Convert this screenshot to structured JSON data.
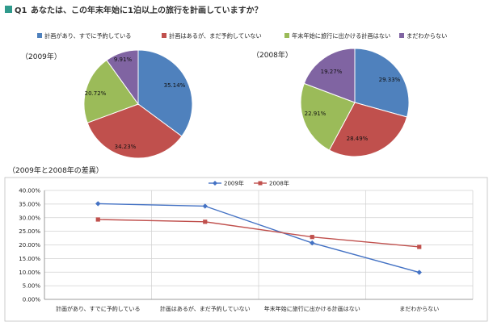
{
  "question": {
    "number": "Q1",
    "text": "あなたは、この年末年始に1泊以上の旅行を計画していますか？",
    "badge_color": "#2f9a8c"
  },
  "pie_legend": [
    {
      "label": "計画があり、すでに予約している",
      "color": "#4f81bd"
    },
    {
      "label": "計画はあるが、まだ予約していない",
      "color": "#c0504d"
    },
    {
      "label": "年末年始に旅行に出かける計画はない",
      "color": "#9bbb59"
    },
    {
      "label": "まだわからない",
      "color": "#8064a2"
    }
  ],
  "comparison_title": "（2009年と2008年の差異）",
  "chart_data": [
    {
      "type": "pie",
      "title": "（2009年）",
      "categories": [
        "計画があり、すでに予約している",
        "計画はあるが、まだ予約していない",
        "年末年始に旅行に出かける計画はない",
        "まだわからない"
      ],
      "values": [
        35.14,
        34.23,
        20.72,
        9.91
      ],
      "value_labels": [
        "35.14%",
        "34.23%",
        "20.72%",
        "9.91%"
      ],
      "colors": [
        "#4f81bd",
        "#c0504d",
        "#9bbb59",
        "#8064a2"
      ]
    },
    {
      "type": "pie",
      "title": "（2008年）",
      "categories": [
        "計画があり、すでに予約している",
        "計画はあるが、まだ予約していない",
        "年末年始に旅行に出かける計画はない",
        "まだわからない"
      ],
      "values": [
        29.33,
        28.49,
        22.91,
        19.27
      ],
      "value_labels": [
        "29.33%",
        "28.49%",
        "22.91%",
        "19.27%"
      ],
      "colors": [
        "#4f81bd",
        "#c0504d",
        "#9bbb59",
        "#8064a2"
      ]
    },
    {
      "type": "line",
      "title": "",
      "categories": [
        "計画があり、すでに予約している",
        "計画はあるが、まだ予約していない",
        "年末年始に旅行に出かける計画はない",
        "まだわからない"
      ],
      "series": [
        {
          "name": "2009年",
          "values": [
            35.14,
            34.23,
            20.72,
            9.91
          ],
          "color": "#4472c4",
          "marker": "diamond"
        },
        {
          "name": "2008年",
          "values": [
            29.33,
            28.49,
            22.91,
            19.27
          ],
          "color": "#c0504d",
          "marker": "square"
        }
      ],
      "ylim": [
        0,
        40
      ],
      "y_ticks": [
        0,
        5,
        10,
        15,
        20,
        25,
        30,
        35,
        40
      ],
      "y_tick_labels": [
        "0.00%",
        "5.00%",
        "10.00%",
        "15.00%",
        "20.00%",
        "25.00%",
        "30.00%",
        "35.00%",
        "40.00%"
      ],
      "legend_position": "top-center",
      "grid": true
    }
  ]
}
